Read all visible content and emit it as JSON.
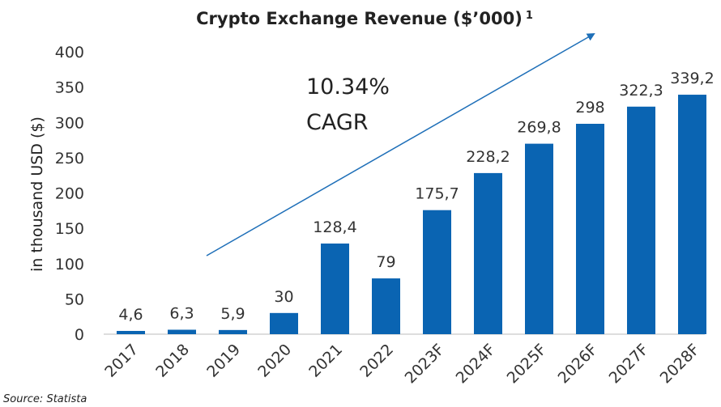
{
  "chart_data": {
    "type": "bar",
    "title": "Crypto Exchange Revenue ($’000)",
    "title_note": "1",
    "y_label": "in thousand USD ($)",
    "annotation": [
      "10.34%",
      "CAGR"
    ],
    "source": "Source: Statista",
    "categories": [
      "2017",
      "2018",
      "2019",
      "2020",
      "2021",
      "2022",
      "2023F",
      "2024F",
      "2025F",
      "2026F",
      "2027F",
      "2028F"
    ],
    "values": [
      4.6,
      6.3,
      5.9,
      30,
      128.4,
      79,
      175.7,
      228.2,
      269.8,
      298,
      322.3,
      339.2
    ],
    "value_labels": [
      "4,6",
      "6,3",
      "5,9",
      "30",
      "128,4",
      "79",
      "175,7",
      "228,2",
      "269,8",
      "298",
      "322,3",
      "339,2"
    ],
    "color": "#0a64b2",
    "ylim": [
      0,
      400
    ],
    "yticks": [
      0,
      50,
      100,
      150,
      200,
      250,
      300,
      350,
      400
    ],
    "grid": false
  }
}
